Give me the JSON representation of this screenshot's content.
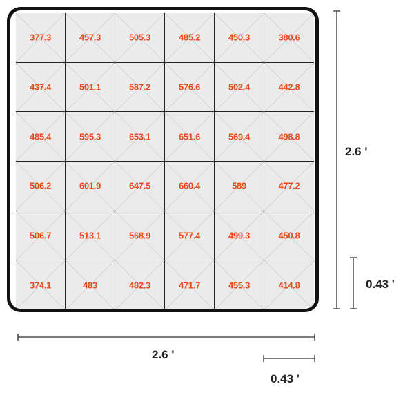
{
  "grid": {
    "rows": 6,
    "cols": 6,
    "values": [
      [
        "377.3",
        "457.3",
        "505.3",
        "485.2",
        "450.3",
        "380.6"
      ],
      [
        "437.4",
        "501.1",
        "587.2",
        "576.6",
        "502.4",
        "442.8"
      ],
      [
        "485.4",
        "595.3",
        "653.1",
        "651.6",
        "569.4",
        "498.8"
      ],
      [
        "506.2",
        "601.9",
        "647.5",
        "660.4",
        "589",
        "477.2"
      ],
      [
        "506.7",
        "513.1",
        "568.9",
        "577.4",
        "499.3",
        "450.8"
      ],
      [
        "374.1",
        "483",
        "482.3",
        "471.7",
        "455.3",
        "414.8"
      ]
    ],
    "value_color": "#e84a1c",
    "cell_fill": "#ebebeb"
  },
  "dimensions": {
    "height_total": "2.6 ʹ",
    "height_cell": "0.43 ʹ",
    "width_total": "2.6 ʹ",
    "width_cell": "0.43 ʹ"
  }
}
